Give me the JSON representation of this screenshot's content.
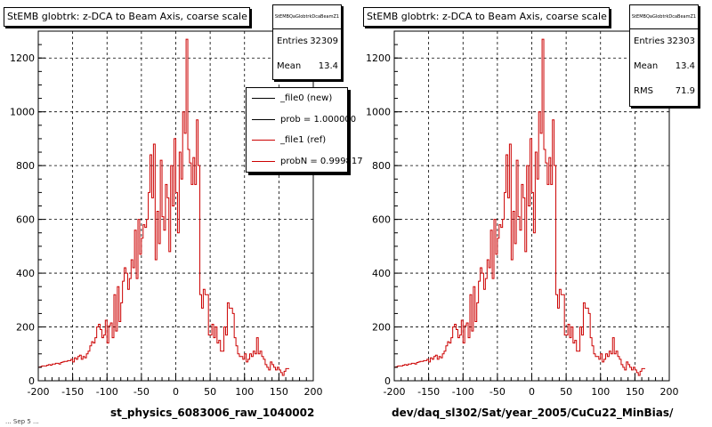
{
  "footer": "... Sep  5 ...",
  "chart_data": [
    {
      "type": "histogram",
      "title": "StEMB globtrk: z-DCA to Beam Axis, coarse scale",
      "stats_name": "StEMBQaGlobtrkDcaBeamZ1",
      "stats": [
        {
          "label": "Entries",
          "value": "32309"
        },
        {
          "label": "Mean",
          "value": "13.4"
        }
      ],
      "xlabel": "st_physics_6083006_raw_1040002",
      "xlim": [
        -200,
        200
      ],
      "ylim": [
        0,
        1300
      ],
      "xticks": [
        "-200",
        "-150",
        "-100",
        "-50",
        "0",
        "50",
        "100",
        "150",
        "200"
      ],
      "yticks": [
        "0",
        "200",
        "400",
        "600",
        "800",
        "1000",
        "1200"
      ],
      "grid": true,
      "line_color": "#cc0000",
      "bin_edges_start": -200,
      "bin_width": 2.5,
      "values": [
        50,
        52,
        55,
        55,
        55,
        58,
        60,
        58,
        62,
        62,
        65,
        65,
        62,
        68,
        70,
        72,
        72,
        75,
        75,
        80,
        70,
        85,
        80,
        90,
        95,
        80,
        90,
        85,
        100,
        110,
        130,
        145,
        140,
        160,
        200,
        210,
        190,
        160,
        170,
        225,
        140,
        205,
        215,
        160,
        320,
        185,
        350,
        220,
        290,
        370,
        420,
        400,
        340,
        380,
        450,
        420,
        560,
        380,
        600,
        470,
        530,
        580,
        570,
        600,
        700,
        840,
        680,
        880,
        450,
        630,
        510,
        820,
        610,
        560,
        730,
        680,
        480,
        800,
        650,
        900,
        700,
        550,
        850,
        750,
        1000,
        920,
        1270,
        860,
        810,
        730,
        830,
        730,
        970,
        800,
        320,
        270,
        340,
        320,
        320,
        170,
        170,
        210,
        160,
        200,
        140,
        150,
        110,
        110,
        200,
        170,
        290,
        270,
        270,
        250,
        160,
        130,
        100,
        90,
        90,
        80,
        100,
        70,
        80,
        100,
        90,
        110,
        100,
        160,
        100,
        110,
        90,
        80,
        60,
        50,
        40,
        70,
        60,
        50,
        40,
        50,
        40,
        30,
        20,
        35,
        45,
        45
      ],
      "legend": [
        {
          "label": "_file0 (new)",
          "color": "#000000"
        },
        {
          "label": "prob = 1.000000",
          "color": "#000000"
        },
        {
          "label": "_file1 (ref)",
          "color": "#cc0000"
        },
        {
          "label": "probN = 0.999817",
          "color": "#cc0000"
        }
      ]
    },
    {
      "type": "histogram",
      "title": "StEMB globtrk: z-DCA to Beam Axis, coarse scale",
      "stats_name": "StEMBQaGlobtrkDcaBeamZ1",
      "stats": [
        {
          "label": "Entries",
          "value": "32303"
        },
        {
          "label": "Mean",
          "value": "13.4"
        },
        {
          "label": "RMS",
          "value": "71.9"
        }
      ],
      "xlabel": "dev/daq_sl302/Sat/year_2005/CuCu22_MinBias/",
      "xlim": [
        -200,
        200
      ],
      "ylim": [
        0,
        1300
      ],
      "xticks": [
        "-200",
        "-150",
        "-100",
        "-50",
        "0",
        "50",
        "100",
        "150",
        "200"
      ],
      "yticks": [
        "0",
        "200",
        "400",
        "600",
        "800",
        "1000",
        "1200"
      ],
      "grid": true,
      "line_color": "#cc0000",
      "bin_edges_start": -200,
      "bin_width": 2.5,
      "values": [
        50,
        52,
        55,
        55,
        55,
        58,
        60,
        58,
        62,
        62,
        65,
        65,
        62,
        68,
        70,
        72,
        72,
        75,
        75,
        80,
        70,
        85,
        80,
        90,
        95,
        80,
        90,
        85,
        100,
        110,
        130,
        145,
        140,
        160,
        200,
        210,
        190,
        160,
        170,
        225,
        140,
        205,
        215,
        160,
        320,
        185,
        350,
        220,
        290,
        370,
        420,
        400,
        340,
        380,
        450,
        420,
        560,
        380,
        600,
        470,
        530,
        580,
        570,
        600,
        700,
        840,
        680,
        880,
        450,
        630,
        510,
        820,
        610,
        560,
        730,
        680,
        480,
        800,
        650,
        900,
        700,
        550,
        850,
        750,
        1000,
        920,
        1270,
        860,
        810,
        730,
        830,
        730,
        970,
        800,
        320,
        270,
        340,
        320,
        320,
        170,
        170,
        210,
        160,
        200,
        140,
        150,
        110,
        110,
        200,
        170,
        290,
        270,
        270,
        250,
        160,
        130,
        100,
        90,
        90,
        80,
        100,
        70,
        80,
        100,
        90,
        110,
        100,
        160,
        100,
        110,
        90,
        80,
        60,
        50,
        40,
        70,
        60,
        50,
        40,
        50,
        40,
        30,
        20,
        35,
        45,
        45
      ]
    }
  ]
}
